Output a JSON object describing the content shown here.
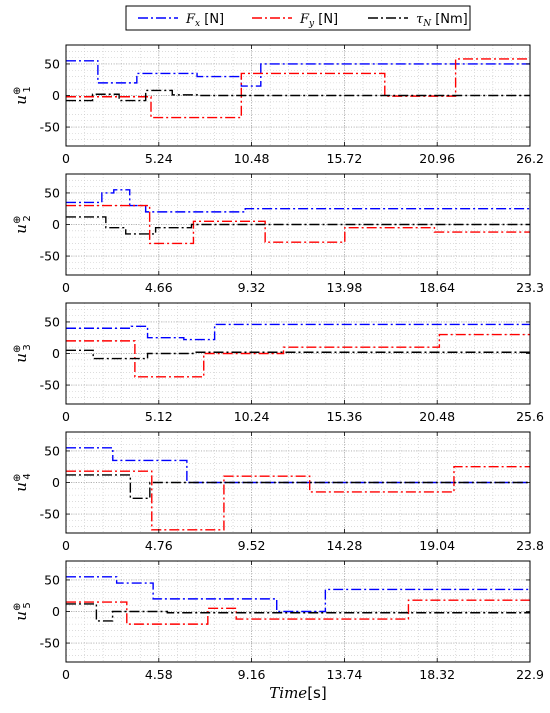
{
  "legend": {
    "placement": "top-center",
    "items": [
      {
        "label": "F",
        "sub": "x",
        "unit": " [N]",
        "color": "#0000ff",
        "dash": "dashdot"
      },
      {
        "label": "F",
        "sub": "y",
        "unit": " [N]",
        "color": "#ff0000",
        "dash": "dashdot"
      },
      {
        "label": "τ",
        "sub": "N",
        "unit": " [Nm]",
        "color": "#000000",
        "dash": "dashdot"
      }
    ]
  },
  "xlabel": {
    "italic": "Time",
    "unit": "[s]"
  },
  "chart_data": [
    {
      "type": "line",
      "ylabel": {
        "base": "u",
        "sup": "⊕",
        "sub": "1"
      },
      "xlim": [
        0,
        26.2
      ],
      "ylim": [
        -80,
        80
      ],
      "xticks": [
        "0",
        "5.24",
        "10.48",
        "15.72",
        "20.96",
        "26.2"
      ],
      "yticks": [
        50,
        0,
        -50
      ],
      "grid": true,
      "series": [
        {
          "name": "Fx",
          "color": "#0000ff",
          "x": [
            0,
            1.8,
            1.8,
            4.0,
            4.0,
            7.4,
            7.4,
            9.9,
            9.9,
            11.0,
            11.0,
            26.2
          ],
          "y": [
            55,
            55,
            20,
            20,
            35,
            35,
            30,
            30,
            15,
            15,
            50,
            50
          ]
        },
        {
          "name": "Fy",
          "color": "#ff0000",
          "x": [
            0,
            4.8,
            4.8,
            9.9,
            9.9,
            18.0,
            18.0,
            22.0,
            22.0,
            26.2
          ],
          "y": [
            -2,
            -2,
            -35,
            -35,
            35,
            35,
            -1,
            -1,
            58,
            58
          ]
        },
        {
          "name": "τN",
          "color": "#000000",
          "x": [
            0,
            1.5,
            1.5,
            3.0,
            3.0,
            4.5,
            4.5,
            6.0,
            6.0,
            7.5,
            7.5,
            26.2
          ],
          "y": [
            -8,
            -8,
            2,
            2,
            -8,
            -8,
            8,
            8,
            1,
            1,
            0,
            0
          ]
        }
      ]
    },
    {
      "type": "line",
      "ylabel": {
        "base": "u",
        "sup": "⊕",
        "sub": "2"
      },
      "xlim": [
        0,
        23.3
      ],
      "ylim": [
        -80,
        80
      ],
      "xticks": [
        "0",
        "4.66",
        "9.32",
        "13.98",
        "18.64",
        "23.3"
      ],
      "yticks": [
        50,
        0,
        -50
      ],
      "grid": true,
      "series": [
        {
          "name": "Fx",
          "color": "#0000ff",
          "x": [
            0,
            1.8,
            1.8,
            2.4,
            2.4,
            3.2,
            3.2,
            4.0,
            4.0,
            9.0,
            9.0,
            23.3
          ],
          "y": [
            35,
            35,
            50,
            50,
            55,
            55,
            30,
            30,
            20,
            20,
            25,
            25
          ]
        },
        {
          "name": "Fy",
          "color": "#ff0000",
          "x": [
            0,
            4.2,
            4.2,
            6.4,
            6.4,
            10.0,
            10.0,
            14.0,
            14.0,
            18.5,
            18.5,
            23.3
          ],
          "y": [
            30,
            30,
            -30,
            -30,
            5,
            5,
            -28,
            -28,
            -5,
            -5,
            -12,
            -12
          ]
        },
        {
          "name": "τN",
          "color": "#000000",
          "x": [
            0,
            2.0,
            2.0,
            3.0,
            3.0,
            4.5,
            4.5,
            6.3,
            6.3,
            23.3
          ],
          "y": [
            12,
            12,
            -5,
            -5,
            -15,
            -15,
            -5,
            -5,
            0,
            0
          ]
        }
      ]
    },
    {
      "type": "line",
      "ylabel": {
        "base": "u",
        "sup": "⊕",
        "sub": "3"
      },
      "xlim": [
        0,
        25.6
      ],
      "ylim": [
        -80,
        80
      ],
      "xticks": [
        "0",
        "5.12",
        "10.24",
        "15.36",
        "20.48",
        "25.6"
      ],
      "yticks": [
        50,
        0,
        -50
      ],
      "grid": true,
      "series": [
        {
          "name": "Fx",
          "color": "#0000ff",
          "x": [
            0,
            3.6,
            3.6,
            4.5,
            4.5,
            6.5,
            6.5,
            8.2,
            8.2,
            25.6
          ],
          "y": [
            40,
            40,
            43,
            43,
            25,
            25,
            22,
            22,
            46,
            46
          ]
        },
        {
          "name": "Fy",
          "color": "#ff0000",
          "x": [
            0,
            3.8,
            3.8,
            7.6,
            7.6,
            12.0,
            12.0,
            20.6,
            20.6,
            25.6
          ],
          "y": [
            20,
            20,
            -37,
            -37,
            0,
            0,
            10,
            10,
            30,
            30
          ]
        },
        {
          "name": "τN",
          "color": "#000000",
          "x": [
            0,
            1.5,
            1.5,
            4.5,
            4.5,
            7.0,
            7.0,
            25.6
          ],
          "y": [
            5,
            5,
            -8,
            -8,
            0,
            0,
            2,
            2
          ]
        }
      ]
    },
    {
      "type": "line",
      "ylabel": {
        "base": "u",
        "sup": "⊕",
        "sub": "4"
      },
      "xlim": [
        0,
        23.8
      ],
      "ylim": [
        -80,
        80
      ],
      "xticks": [
        "0",
        "4.76",
        "9.52",
        "14.28",
        "19.04",
        "23.8"
      ],
      "yticks": [
        50,
        0,
        -50
      ],
      "grid": true,
      "series": [
        {
          "name": "Fx",
          "color": "#0000ff",
          "x": [
            0,
            2.4,
            2.4,
            6.2,
            6.2,
            23.8
          ],
          "y": [
            55,
            55,
            35,
            35,
            0,
            0
          ]
        },
        {
          "name": "Fy",
          "color": "#ff0000",
          "x": [
            0,
            4.4,
            4.4,
            8.1,
            8.1,
            12.5,
            12.5,
            19.9,
            19.9,
            23.8
          ],
          "y": [
            18,
            18,
            -75,
            -75,
            10,
            10,
            -15,
            -15,
            25,
            25
          ]
        },
        {
          "name": "τN",
          "color": "#000000",
          "x": [
            0,
            3.3,
            3.3,
            4.3,
            4.3,
            23.8
          ],
          "y": [
            12,
            12,
            -25,
            -25,
            0,
            0
          ]
        }
      ]
    },
    {
      "type": "line",
      "ylabel": {
        "base": "u",
        "sup": "⊕",
        "sub": "5"
      },
      "xlim": [
        0,
        22.9
      ],
      "ylim": [
        -80,
        80
      ],
      "xticks": [
        "0",
        "4.58",
        "9.16",
        "13.74",
        "18.32",
        "22.9"
      ],
      "yticks": [
        50,
        0,
        -50
      ],
      "grid": true,
      "series": [
        {
          "name": "Fx",
          "color": "#0000ff",
          "x": [
            0,
            2.5,
            2.5,
            4.3,
            4.3,
            10.4,
            10.4,
            12.8,
            12.8,
            22.9
          ],
          "y": [
            55,
            55,
            45,
            45,
            20,
            20,
            0,
            0,
            35,
            35
          ]
        },
        {
          "name": "Fy",
          "color": "#ff0000",
          "x": [
            0,
            3.0,
            3.0,
            7.0,
            7.0,
            8.4,
            8.4,
            16.9,
            16.9,
            22.9
          ],
          "y": [
            15,
            15,
            -20,
            -20,
            5,
            5,
            -12,
            -12,
            18,
            18
          ]
        },
        {
          "name": "τN",
          "color": "#000000",
          "x": [
            0,
            1.5,
            1.5,
            2.3,
            2.3,
            5.0,
            5.0,
            22.9
          ],
          "y": [
            12,
            12,
            -15,
            -15,
            0,
            0,
            -2,
            -2
          ]
        }
      ]
    }
  ]
}
